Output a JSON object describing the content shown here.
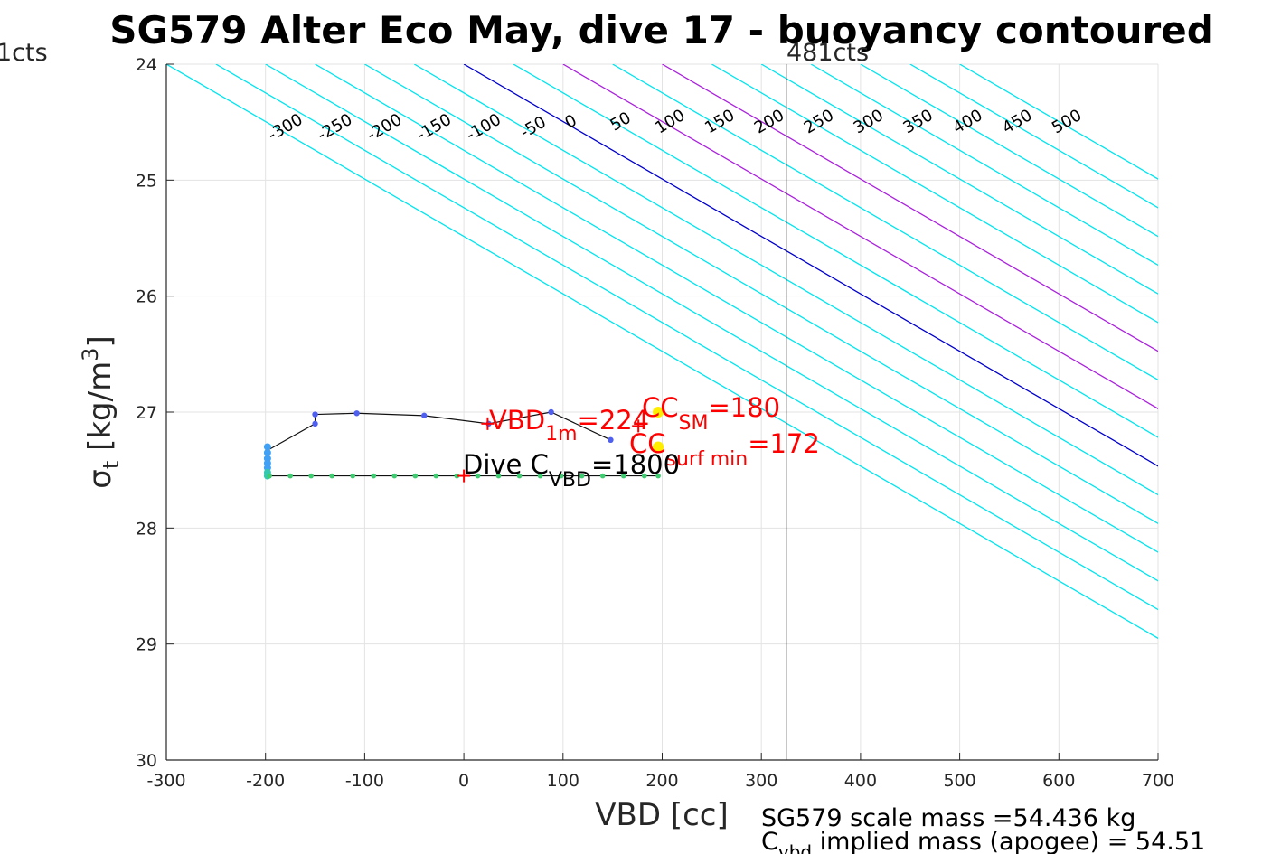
{
  "chart_data": {
    "type": "scatter",
    "title": "SG579 Alter Eco May, dive 17 - buoyancy contoured",
    "xlabel": "VBD [cc]",
    "ylabel_symbol": "σ",
    "ylabel_sub": "t",
    "ylabel_unit": " [kg/m",
    "ylabel_sup": "3",
    "ylabel_close": "]",
    "xlim": [
      -300,
      700
    ],
    "ylim": [
      24,
      30
    ],
    "y_reversed": true,
    "grid": true,
    "x_ticks": [
      "-300",
      "-200",
      "-100",
      "0",
      "100",
      "200",
      "300",
      "400",
      "500",
      "600",
      "700"
    ],
    "y_ticks": [
      "24",
      "25",
      "26",
      "27",
      "28",
      "29",
      "30"
    ],
    "contours": {
      "levels": [
        -300,
        -250,
        -200,
        -150,
        -100,
        -50,
        0,
        50,
        100,
        150,
        200,
        250,
        300,
        350,
        400,
        450,
        500
      ],
      "zero_color": "#0000cc",
      "highlight_color": "#aa22dd",
      "highlight_levels": [
        100,
        200
      ],
      "other_color": "#00e5ee",
      "top_labels": [
        "-300",
        "-250",
        "-200",
        "-150",
        "-100",
        "-50",
        "0",
        "50",
        "100",
        "150",
        "200",
        "250",
        "300",
        "350",
        "400",
        "450",
        "500"
      ],
      "bottom_labels": [
        "-100",
        "-50",
        "0",
        "50",
        "100",
        "150",
        "200",
        "250",
        "300",
        "350",
        "400",
        "450",
        "500"
      ]
    },
    "vertical_line": {
      "x": 325,
      "label": "481cts"
    },
    "left_corner_label": "1cts",
    "dive_series": [
      {
        "x": -150,
        "y": 27.02
      },
      {
        "x": -108,
        "y": 27.01
      },
      {
        "x": -40,
        "y": 27.03
      },
      {
        "x": 25,
        "y": 27.1
      },
      {
        "x": 88,
        "y": 27.0
      },
      {
        "x": 148,
        "y": 27.24
      }
    ],
    "climb_trace": [
      {
        "x": -150,
        "y": 27.02
      },
      {
        "x": -150,
        "y": 27.1
      },
      {
        "x": -198,
        "y": 27.33
      }
    ],
    "cluster_points": [
      {
        "x": -198,
        "y": 27.3
      },
      {
        "x": -198,
        "y": 27.35
      },
      {
        "x": -198,
        "y": 27.4
      },
      {
        "x": -198,
        "y": 27.44
      },
      {
        "x": -198,
        "y": 27.48
      },
      {
        "x": -198,
        "y": 27.52
      },
      {
        "x": -198,
        "y": 27.55
      }
    ],
    "surface_series": [
      {
        "x": -196,
        "y": 27.55
      },
      {
        "x": -175,
        "y": 27.55
      },
      {
        "x": -154,
        "y": 27.55
      },
      {
        "x": -133,
        "y": 27.55
      },
      {
        "x": -112,
        "y": 27.55
      },
      {
        "x": -91,
        "y": 27.55
      },
      {
        "x": -70,
        "y": 27.55
      },
      {
        "x": -49,
        "y": 27.55
      },
      {
        "x": -28,
        "y": 27.55
      },
      {
        "x": -7,
        "y": 27.55
      },
      {
        "x": 14,
        "y": 27.55
      },
      {
        "x": 35,
        "y": 27.55
      },
      {
        "x": 56,
        "y": 27.55
      },
      {
        "x": 77,
        "y": 27.55
      },
      {
        "x": 98,
        "y": 27.55
      },
      {
        "x": 119,
        "y": 27.55
      },
      {
        "x": 140,
        "y": 27.55
      },
      {
        "x": 161,
        "y": 27.55
      },
      {
        "x": 182,
        "y": 27.55
      },
      {
        "x": 196,
        "y": 27.55
      }
    ],
    "markers": [
      {
        "name": "vbd-1m-marker",
        "x": 24,
        "y": 27.1,
        "color": "#ff0000"
      },
      {
        "name": "cc-sm-marker",
        "x": 196,
        "y": 27.0,
        "color": "#ffee00"
      },
      {
        "name": "cc-surf-min-marker",
        "x": 196,
        "y": 27.3,
        "color": "#ffee00"
      },
      {
        "name": "dive-cvbd-marker",
        "x": 0,
        "y": 27.55,
        "color": "#ff0000"
      },
      {
        "name": "vbd-1m-plus",
        "x": 176,
        "y": 27.12,
        "color": "#ff0000"
      }
    ],
    "annotations": {
      "vbd_main": "VBD",
      "vbd_sub": "1m",
      "vbd_value": "=224",
      "ccsm_main": "CC",
      "ccsm_sub": "SM",
      "ccsm_value": "=180",
      "ccsurf_main": "CC",
      "ccsurf_sub": "surf min",
      "ccsurf_value": "=172",
      "dive_main": "Dive C",
      "dive_sub": "VBD",
      "dive_value": "=1800"
    },
    "footer": {
      "line1": "SG579 scale mass =54.436 kg",
      "line2_main": "C",
      "line2_sub": "vbd",
      "line2_rest": " implied mass (apogee) = 54.51"
    }
  }
}
